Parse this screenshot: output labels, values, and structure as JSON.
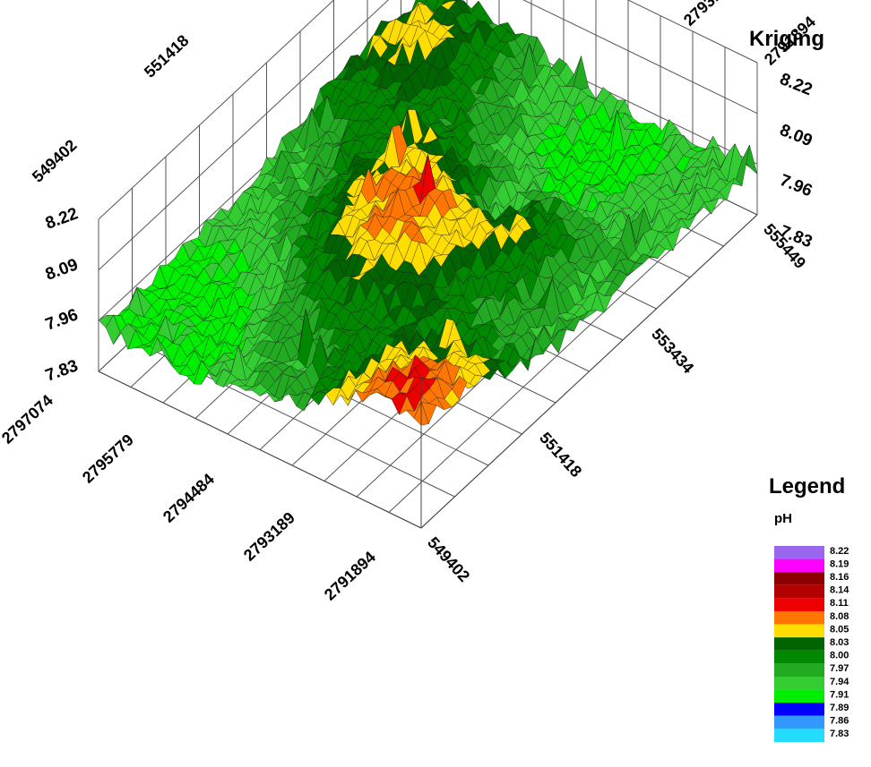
{
  "chart_data": {
    "type": "surface3d",
    "title": "Kriging",
    "z_unit": "pH",
    "legend_title": "Legend",
    "x_ticks": [
      "549402",
      "551418",
      "553434",
      "555449"
    ],
    "y_ticks": [
      "2797074",
      "2795779",
      "2794484",
      "2793189",
      "2791894"
    ],
    "z_ticks": [
      "7.83",
      "7.96",
      "8.09",
      "8.22"
    ],
    "zlim": [
      7.83,
      8.22
    ],
    "legend": [
      {
        "value": "8.22",
        "color": "#9966ee"
      },
      {
        "value": "8.19",
        "color": "#ff00ff"
      },
      {
        "value": "8.16",
        "color": "#8b0000"
      },
      {
        "value": "8.14",
        "color": "#b30000"
      },
      {
        "value": "8.11",
        "color": "#ee0000"
      },
      {
        "value": "8.08",
        "color": "#ff7700"
      },
      {
        "value": "8.05",
        "color": "#ffdd00"
      },
      {
        "value": "8.03",
        "color": "#006400"
      },
      {
        "value": "8.00",
        "color": "#008800"
      },
      {
        "value": "7.97",
        "color": "#22aa22"
      },
      {
        "value": "7.94",
        "color": "#33cc33"
      },
      {
        "value": "7.91",
        "color": "#00ee00"
      },
      {
        "value": "7.89",
        "color": "#0000ff"
      },
      {
        "value": "7.86",
        "color": "#3399ff"
      },
      {
        "value": "7.83",
        "color": "#22ddff"
      }
    ]
  }
}
